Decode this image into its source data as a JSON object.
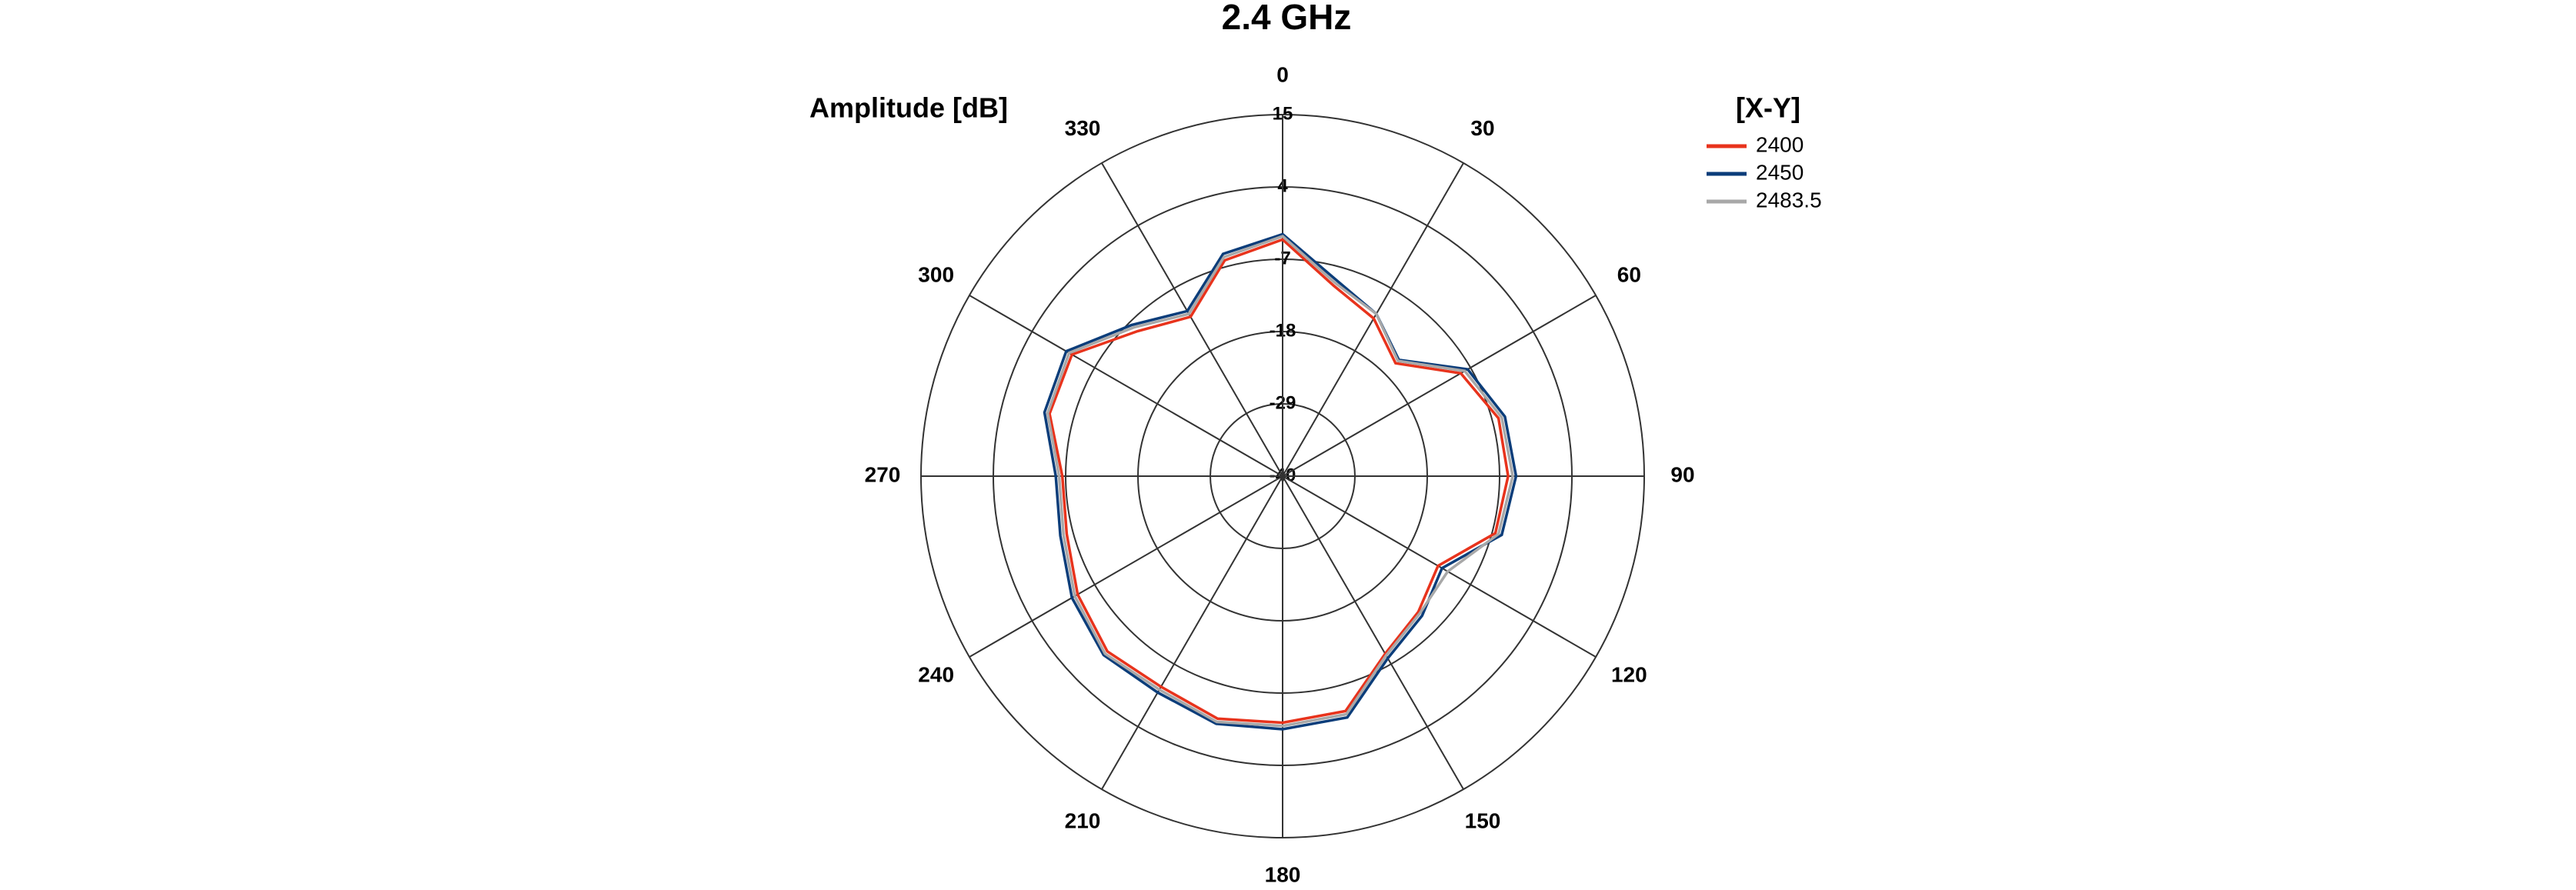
{
  "chart_data": {
    "type": "polar",
    "title": "2.4 GHz",
    "radial_axis_label": "Amplitude [dB]",
    "legend_title": "[X-Y]",
    "rlim": [
      -40,
      15
    ],
    "rticks": [
      -40,
      -29,
      -18,
      -7,
      4,
      15
    ],
    "angle_ticks": [
      0,
      30,
      60,
      90,
      120,
      150,
      180,
      210,
      240,
      270,
      300,
      330
    ],
    "theta": [
      0,
      15,
      30,
      45,
      60,
      75,
      90,
      105,
      120,
      135,
      150,
      165,
      180,
      195,
      210,
      225,
      240,
      255,
      270,
      285,
      300,
      315,
      330,
      345
    ],
    "series": [
      {
        "name": "2400",
        "color": "#e8331c",
        "values": [
          -4,
          -10,
          -12.3,
          -15.7,
          -8.7,
          -6,
          -5.7,
          -6.5,
          -12.7,
          -10.8,
          -8.8,
          -3,
          -2.5,
          -1.8,
          -3,
          -2.3,
          -4,
          -6,
          -6.5,
          -3.3,
          -3,
          -8.8,
          -12,
          -6
        ]
      },
      {
        "name": "2450",
        "color": "#0b3d7a",
        "values": [
          -3.2,
          -9,
          -11.5,
          -15,
          -7.5,
          -5,
          -4.5,
          -5.5,
          -12,
          -10,
          -8,
          -2,
          -1.5,
          -1,
          -2,
          -1.5,
          -3,
          -5,
          -5.5,
          -2.5,
          -2,
          -7.5,
          -11,
          -5
        ]
      },
      {
        "name": "2483.5",
        "color": "#a8a8a8",
        "values": [
          -3.5,
          -9.5,
          -11.5,
          -15.2,
          -8,
          -5.5,
          -5,
          -6,
          -11,
          -10.5,
          -8.5,
          -2.5,
          -2,
          -1.3,
          -2.5,
          -1.8,
          -3.5,
          -5.5,
          -6,
          -3,
          -2.5,
          -8,
          -11.5,
          -5.5
        ]
      }
    ],
    "legend": "top-right"
  }
}
